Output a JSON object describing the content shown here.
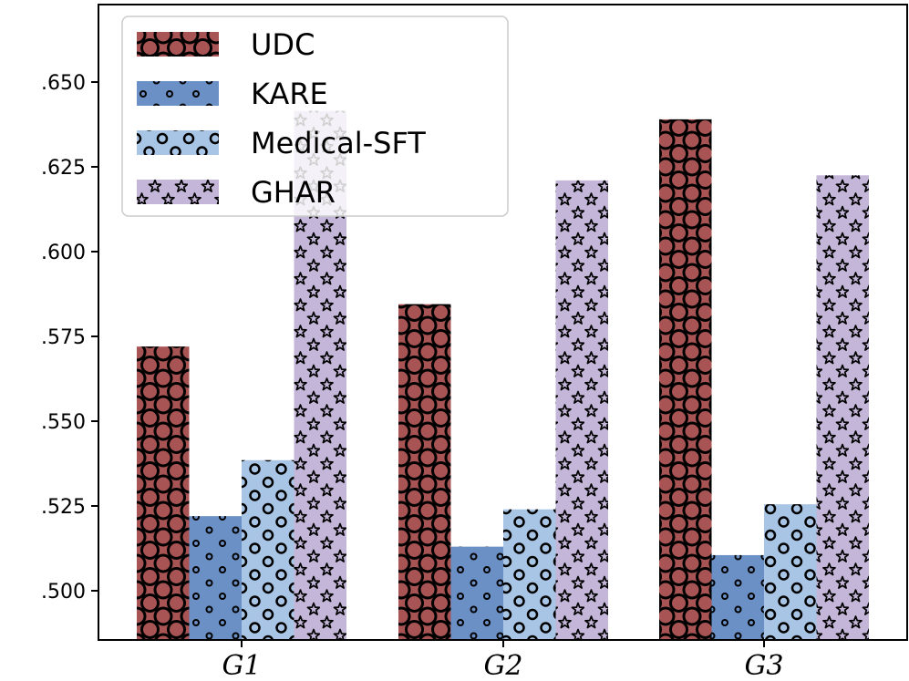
{
  "chart_data": {
    "type": "bar",
    "title": "",
    "xlabel": "",
    "ylabel": "",
    "categories": [
      "G1",
      "G2",
      "G3"
    ],
    "ylim": [
      0.4875,
      0.67
    ],
    "yticks": [
      0.5,
      0.525,
      0.55,
      0.575,
      0.6,
      0.625,
      0.65
    ],
    "ytick_labels": [
      ".500",
      ".525",
      ".550",
      ".575",
      ".600",
      ".625",
      ".650"
    ],
    "grid": false,
    "legend_position": "top-left",
    "series": [
      {
        "name": "UDC",
        "color": "#A85454",
        "hatch": "large-circles",
        "values": [
          0.572,
          0.5845,
          0.639
        ]
      },
      {
        "name": "KARE",
        "color": "#6A90C5",
        "hatch": "small-dots",
        "values": [
          0.522,
          0.513,
          0.5105
        ]
      },
      {
        "name": "Medical-SFT",
        "color": "#A9C5E5",
        "hatch": "circles",
        "values": [
          0.5385,
          0.524,
          0.5255
        ]
      },
      {
        "name": "GHAR",
        "color": "#C3B6D8",
        "hatch": "stars",
        "values": [
          0.6415,
          0.621,
          0.6225
        ]
      }
    ]
  }
}
